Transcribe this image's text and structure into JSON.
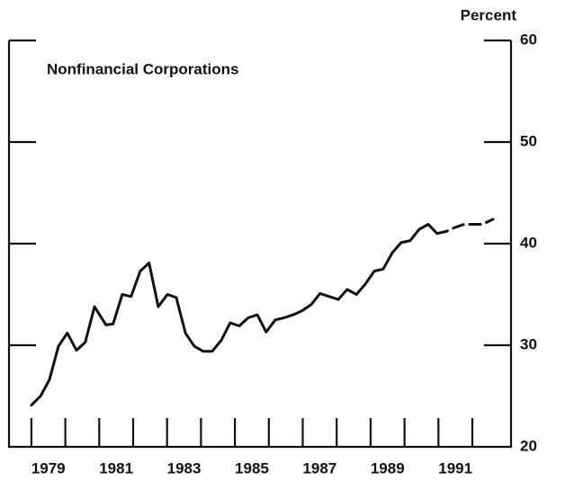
{
  "chart_data": {
    "type": "line",
    "title": "Nonfinancial Corporations",
    "y_axis_label": "Percent",
    "xlim": [
      1978.34,
      1993.14
    ],
    "ylim": [
      20,
      60
    ],
    "yticks": [
      20,
      30,
      40,
      50,
      60
    ],
    "xticks": [
      {
        "value": 1979.5,
        "label": "1979"
      },
      {
        "value": 1981.5,
        "label": "1981"
      },
      {
        "value": 1983.5,
        "label": "1983"
      },
      {
        "value": 1985.5,
        "label": "1985"
      },
      {
        "value": 1987.5,
        "label": "1987"
      },
      {
        "value": 1989.5,
        "label": "1989"
      },
      {
        "value": 1991.5,
        "label": "1991"
      }
    ],
    "year_marks": [
      1979,
      1980,
      1981,
      1982,
      1983,
      1984,
      1985,
      1986,
      1987,
      1988,
      1989,
      1990,
      1991,
      1992
    ],
    "series": [
      {
        "color": "#111111",
        "dash": false,
        "x": [
          1979.0,
          1979.27,
          1979.53,
          1979.8,
          1980.06,
          1980.33,
          1980.59,
          1980.86,
          1981.2,
          1981.41,
          1981.68,
          1981.94,
          1982.21,
          1982.47,
          1982.74,
          1983.01,
          1983.27,
          1983.54,
          1983.8,
          1984.07,
          1984.33,
          1984.6,
          1984.86,
          1985.13,
          1985.39,
          1985.66,
          1985.92,
          1986.19,
          1986.45,
          1986.72,
          1986.98,
          1987.25,
          1987.51,
          1987.78,
          1988.05,
          1988.31,
          1988.58,
          1988.84,
          1989.11,
          1989.37,
          1989.64,
          1989.9,
          1990.17,
          1990.43,
          1990.7,
          1990.96
        ],
        "values": [
          24.1,
          25.0,
          26.6,
          29.9,
          31.2,
          29.5,
          30.3,
          33.8,
          32.0,
          32.1,
          35.0,
          34.8,
          37.3,
          38.1,
          33.8,
          35.0,
          34.7,
          31.2,
          29.9,
          29.4,
          29.4,
          30.5,
          32.2,
          31.9,
          32.7,
          33.0,
          31.3,
          32.5,
          32.7,
          33.0,
          33.4,
          34.0,
          35.1,
          34.8,
          34.5,
          35.5,
          35.0,
          36.0,
          37.3,
          37.5,
          39.1,
          40.1,
          40.3,
          41.4,
          41.9,
          41.0
        ]
      },
      {
        "color": "#111111",
        "dash": true,
        "x": [
          1990.96,
          1991.23,
          1991.49,
          1991.76,
          1992.02,
          1992.29,
          1992.61
        ],
        "values": [
          41.0,
          41.2,
          41.6,
          41.9,
          41.9,
          41.9,
          42.4
        ]
      }
    ]
  }
}
